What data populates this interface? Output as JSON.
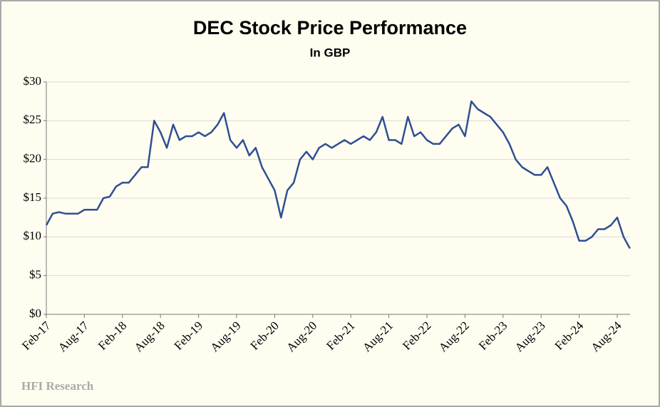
{
  "chart_data": {
    "type": "line",
    "title": "DEC Stock Price Performance",
    "subtitle": "In GBP",
    "source": "HFI Research",
    "x": [
      "Feb-17",
      "Mar-17",
      "Apr-17",
      "May-17",
      "Jun-17",
      "Jul-17",
      "Aug-17",
      "Sep-17",
      "Oct-17",
      "Nov-17",
      "Dec-17",
      "Jan-18",
      "Feb-18",
      "Mar-18",
      "Apr-18",
      "May-18",
      "Jun-18",
      "Jul-18",
      "Aug-18",
      "Sep-18",
      "Oct-18",
      "Nov-18",
      "Dec-18",
      "Jan-19",
      "Feb-19",
      "Mar-19",
      "Apr-19",
      "May-19",
      "Jun-19",
      "Jul-19",
      "Aug-19",
      "Sep-19",
      "Oct-19",
      "Nov-19",
      "Dec-19",
      "Jan-20",
      "Feb-20",
      "Mar-20",
      "Apr-20",
      "May-20",
      "Jun-20",
      "Jul-20",
      "Aug-20",
      "Sep-20",
      "Oct-20",
      "Nov-20",
      "Dec-20",
      "Jan-21",
      "Feb-21",
      "Mar-21",
      "Apr-21",
      "May-21",
      "Jun-21",
      "Jul-21",
      "Aug-21",
      "Sep-21",
      "Oct-21",
      "Nov-21",
      "Dec-21",
      "Jan-22",
      "Feb-22",
      "Mar-22",
      "Apr-22",
      "May-22",
      "Jun-22",
      "Jul-22",
      "Aug-22",
      "Sep-22",
      "Oct-22",
      "Nov-22",
      "Dec-22",
      "Jan-23",
      "Feb-23",
      "Mar-23",
      "Apr-23",
      "May-23",
      "Jun-23",
      "Jul-23",
      "Aug-23",
      "Sep-23",
      "Oct-23",
      "Nov-23",
      "Dec-23",
      "Jan-24",
      "Feb-24",
      "Mar-24",
      "Apr-24",
      "May-24",
      "Jun-24",
      "Jul-24",
      "Aug-24",
      "Sep-24",
      "Oct-24"
    ],
    "series": [
      {
        "name": "DEC",
        "color": "#2f4f94",
        "values": [
          11.5,
          13,
          13.2,
          13,
          13,
          13,
          13.5,
          13.5,
          13.5,
          15,
          15.2,
          16.5,
          17,
          17,
          18,
          19,
          19,
          25,
          23.5,
          21.5,
          24.5,
          22.5,
          23,
          23,
          23.5,
          23,
          23.5,
          24.5,
          26,
          22.5,
          21.5,
          22.5,
          20.5,
          21.5,
          19,
          17.5,
          16,
          12.5,
          16,
          17,
          20,
          21,
          20,
          21.5,
          22,
          21.5,
          22,
          22.5,
          22,
          22.5,
          23,
          22.5,
          23.5,
          25.5,
          22.5,
          22.5,
          22,
          25.5,
          23,
          23.5,
          22.5,
          22,
          22,
          23,
          24,
          24.5,
          23,
          27.5,
          26.5,
          26,
          25.5,
          24.5,
          23.5,
          22,
          20,
          19,
          18.5,
          18,
          18,
          19,
          17,
          15,
          14,
          12,
          9.5,
          9.5,
          10,
          11,
          11,
          11.5,
          12.5,
          10,
          8.5
        ]
      }
    ],
    "xticks": [
      "Feb-17",
      "Aug-17",
      "Feb-18",
      "Aug-18",
      "Feb-19",
      "Aug-19",
      "Feb-20",
      "Aug-20",
      "Feb-21",
      "Aug-21",
      "Feb-22",
      "Aug-22",
      "Feb-23",
      "Aug-23",
      "Feb-24",
      "Aug-24"
    ],
    "ylim": [
      0,
      30
    ],
    "yticks": [
      {
        "value": 0,
        "label": "$0"
      },
      {
        "value": 5,
        "label": "$5"
      },
      {
        "value": 10,
        "label": "$10"
      },
      {
        "value": 15,
        "label": "$15"
      },
      {
        "value": 20,
        "label": "$20"
      },
      {
        "value": 25,
        "label": "$25"
      },
      {
        "value": 30,
        "label": "$30"
      }
    ],
    "grid": true
  }
}
